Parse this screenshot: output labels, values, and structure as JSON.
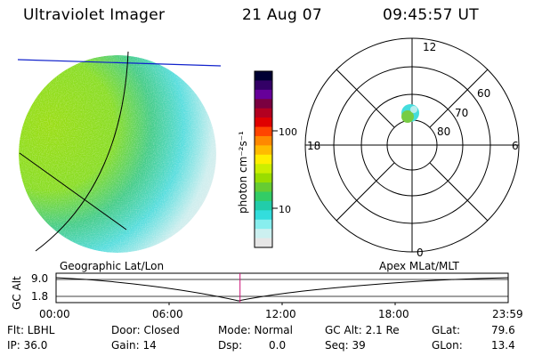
{
  "header": {
    "instrument": "Ultraviolet Imager",
    "date": "21 Aug 07",
    "time": "09:45:57 UT"
  },
  "colorbar": {
    "unit_label": "photon cm⁻²s⁻¹",
    "tick_labels": [
      "100",
      "10"
    ],
    "colors": [
      "#000033",
      "#330066",
      "#660099",
      "#7a0040",
      "#b30020",
      "#e00000",
      "#ff4400",
      "#ff8800",
      "#ffbb00",
      "#ffee00",
      "#ccee00",
      "#99dd00",
      "#66cc33",
      "#33cc66",
      "#22ccaa",
      "#33dddd",
      "#88eeee",
      "#ccf0f0",
      "#e6e6e6"
    ]
  },
  "polar_plot": {
    "mlt_labels": [
      "12",
      "18",
      "6",
      "0"
    ],
    "mlat_labels": [
      "60",
      "70",
      "80"
    ]
  },
  "timeline": {
    "left_title": "Geographic Lat/Lon",
    "right_title": "Apex MLat/MLT",
    "axis_label": "GC Alt",
    "y_ticks": [
      "9.0",
      "1.8"
    ],
    "x_ticks": [
      "00:00",
      "06:00",
      "12:00",
      "18:00",
      "23:59"
    ],
    "current_time_fraction": 0.4069
  },
  "status": {
    "flt": "Flt: LBHL",
    "ip": "IP: 36.0",
    "door": "Door: Closed",
    "gain": "Gain: 14",
    "mode": "Mode: Normal",
    "dsp_label": "Dsp:",
    "dsp_value": "0.0",
    "gc_alt": "GC Alt: 2.1 Re",
    "seq": "Seq: 39",
    "glat_label": "GLat:",
    "glat_value": "79.6",
    "glon_label": "GLon:",
    "glon_value": "13.4"
  }
}
